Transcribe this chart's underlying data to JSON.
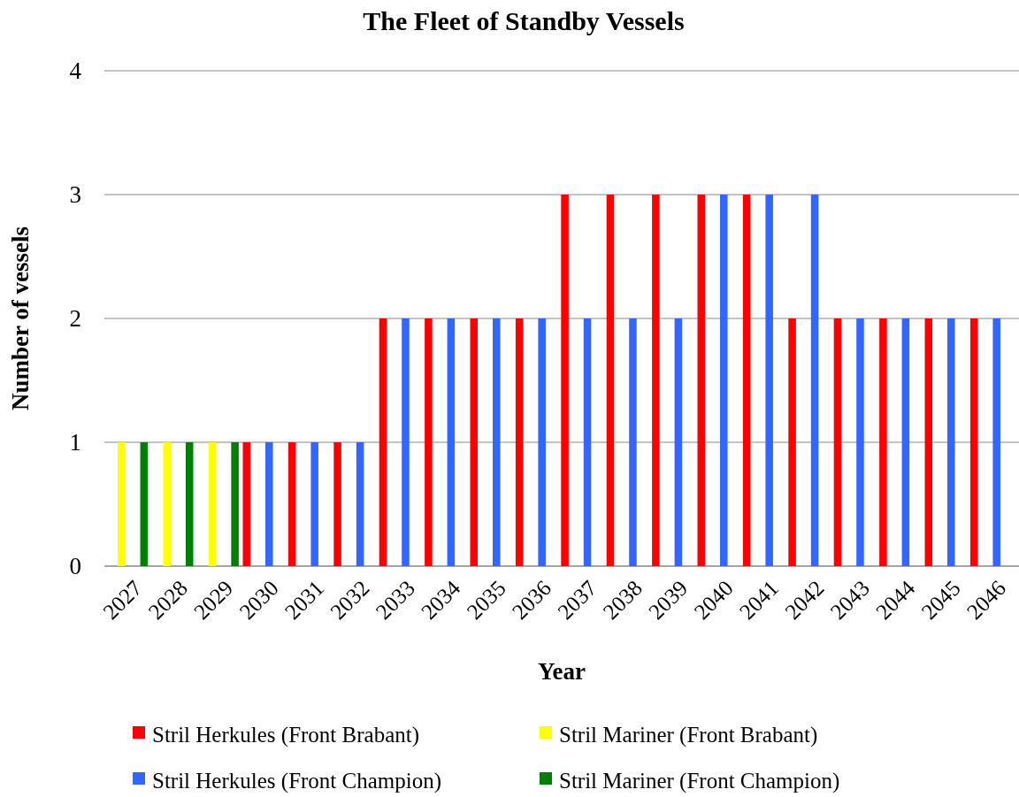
{
  "chart_data": {
    "type": "bar",
    "title": "The Fleet of Standby Vessels",
    "xlabel": "Year",
    "ylabel": "Number of vessels",
    "categories": [
      "2027",
      "2028",
      "2029",
      "2030",
      "2031",
      "2032",
      "2033",
      "2034",
      "2035",
      "2036",
      "2037",
      "2038",
      "2039",
      "2040",
      "2041",
      "2042",
      "2043",
      "2044",
      "2045",
      "2046"
    ],
    "series": [
      {
        "name": "Stril Herkules (Front Brabant)",
        "color": "#ff0000",
        "values": [
          null,
          null,
          null,
          1,
          1,
          1,
          2,
          2,
          2,
          2,
          3,
          3,
          3,
          3,
          3,
          2,
          2,
          2,
          2,
          2
        ]
      },
      {
        "name": "Stril Mariner (Front Brabant)",
        "color": "#ffff00",
        "values": [
          1,
          1,
          1,
          null,
          null,
          null,
          null,
          null,
          null,
          null,
          null,
          null,
          null,
          null,
          null,
          null,
          null,
          null,
          null,
          null
        ]
      },
      {
        "name": "Stril Herkules (Front Champion)",
        "color": "#3366ff",
        "values": [
          null,
          null,
          null,
          1,
          1,
          1,
          2,
          2,
          2,
          2,
          2,
          2,
          2,
          3,
          3,
          3,
          2,
          2,
          2,
          2
        ]
      },
      {
        "name": "Stril Mariner (Front Champion)",
        "color": "#008000",
        "values": [
          1,
          1,
          1,
          null,
          null,
          null,
          null,
          null,
          null,
          null,
          null,
          null,
          null,
          null,
          null,
          null,
          null,
          null,
          null,
          null
        ]
      }
    ],
    "ylim": [
      0,
      4
    ],
    "yticks": [
      0,
      1,
      2,
      3,
      4
    ],
    "grid": "y",
    "legend": "bottom"
  }
}
